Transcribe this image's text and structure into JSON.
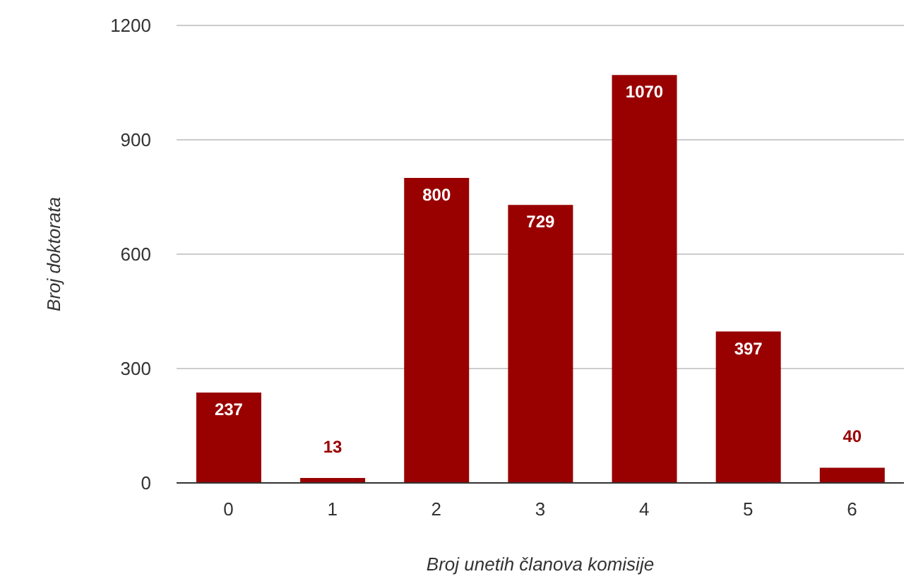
{
  "chart_data": {
    "type": "bar",
    "xlabel": "Broj unetih članova komisije",
    "ylabel": "Broj doktorata",
    "categories": [
      "0",
      "1",
      "2",
      "3",
      "4",
      "5",
      "6"
    ],
    "values": [
      237,
      13,
      800,
      729,
      1070,
      397,
      40
    ],
    "color": "#990000",
    "ylim": [
      0,
      1200
    ],
    "yticks": [
      0,
      300,
      600,
      900,
      1200
    ],
    "grid": "y",
    "data_labels": true
  }
}
